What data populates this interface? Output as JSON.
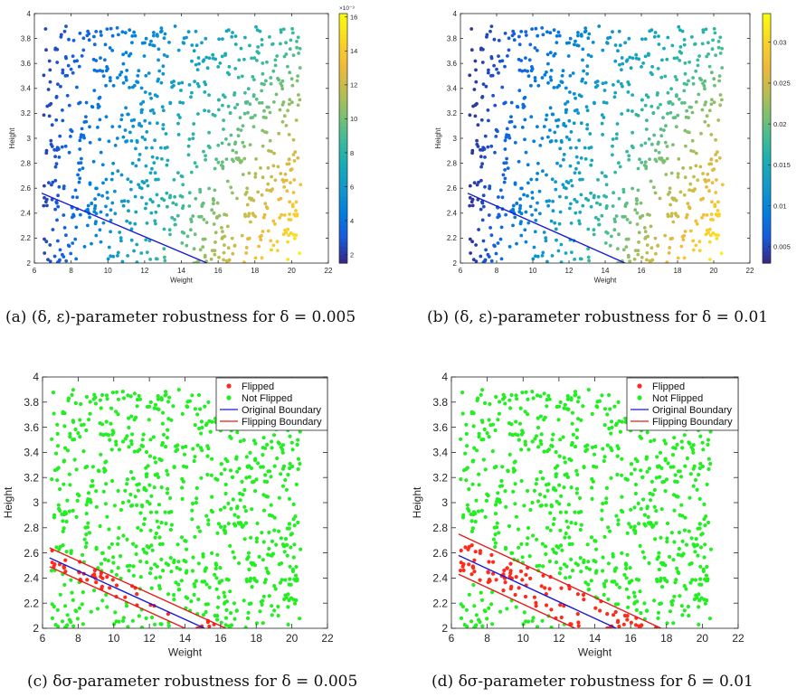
{
  "colors": {
    "flipped": "#ff2a1a",
    "not_flipped": "#22ee22",
    "original_boundary": "#1a1ad8",
    "flipping_boundary": "#e81a1a",
    "colormap": "parula"
  },
  "figure": {
    "captions": [
      {
        "label": "(a)",
        "text": "(δ, ε)-parameter robustness for δ = 0.005"
      },
      {
        "label": "(b)",
        "text": "(δ, ε)-parameter robustness for δ = 0.01"
      },
      {
        "label": "(c)",
        "text": "δσ-parameter robustness for δ = 0.005"
      },
      {
        "label": "(d)",
        "text": "δσ-parameter robustness for δ = 0.01"
      }
    ]
  },
  "chart_data": [
    {
      "id": "a",
      "type": "scatter",
      "color_by": "robustness",
      "xlabel": "Weight",
      "ylabel": "Height",
      "xlim": [
        6,
        22
      ],
      "ylim": [
        2,
        4
      ],
      "xticks": [
        "6",
        "8",
        "10",
        "12",
        "14",
        "16",
        "18",
        "20",
        "22"
      ],
      "yticks": [
        "2",
        "2.2",
        "2.4",
        "2.6",
        "2.8",
        "3",
        "3.2",
        "3.4",
        "3.6",
        "3.8",
        "4"
      ],
      "colorbar": {
        "min": 0.0015,
        "max": 0.0162,
        "ticks": [
          "2",
          "4",
          "6",
          "8",
          "10",
          "12",
          "14",
          "16"
        ],
        "exponent": "×10⁻³"
      },
      "boundary": {
        "x": [
          6.4,
          15.4
        ],
        "y": [
          2.56,
          2.0
        ]
      },
      "legend": null
    },
    {
      "id": "b",
      "type": "scatter",
      "color_by": "robustness",
      "xlabel": "Weight",
      "ylabel": "Height",
      "xlim": [
        6,
        22
      ],
      "ylim": [
        2,
        4
      ],
      "xticks": [
        "6",
        "8",
        "10",
        "12",
        "14",
        "16",
        "18",
        "20",
        "22"
      ],
      "yticks": [
        "2",
        "2.2",
        "2.4",
        "2.6",
        "2.8",
        "3",
        "3.2",
        "3.4",
        "3.6",
        "3.8",
        "4"
      ],
      "colorbar": {
        "min": 0.003,
        "max": 0.0335,
        "ticks": [
          "0.005",
          "0.01",
          "0.015",
          "0.02",
          "0.025",
          "0.03"
        ],
        "exponent": ""
      },
      "boundary": {
        "x": [
          6.4,
          15.1
        ],
        "y": [
          2.56,
          2.0
        ]
      },
      "legend": null
    },
    {
      "id": "c",
      "type": "scatter",
      "xlabel": "Weight",
      "ylabel": "Height",
      "xlim": [
        6,
        22
      ],
      "ylim": [
        2,
        4
      ],
      "xticks": [
        "6",
        "8",
        "10",
        "12",
        "14",
        "16",
        "18",
        "20",
        "22"
      ],
      "yticks": [
        "2",
        "2.2",
        "2.4",
        "2.6",
        "2.8",
        "3",
        "3.2",
        "3.4",
        "3.6",
        "3.8",
        "4"
      ],
      "boundary": {
        "x": [
          6.4,
          15.1
        ],
        "y": [
          2.56,
          2.0
        ]
      },
      "flip_upper": {
        "x": [
          6.4,
          16.3
        ],
        "y": [
          2.64,
          2.0
        ]
      },
      "flip_lower": {
        "x": [
          6.4,
          14.0
        ],
        "y": [
          2.49,
          2.0
        ]
      },
      "legend": {
        "placement": "top-right",
        "entries": [
          "Flipped",
          "Not Flipped",
          "Original Boundary",
          "Flipping Boundary"
        ]
      }
    },
    {
      "id": "d",
      "type": "scatter",
      "xlabel": "Weight",
      "ylabel": "Height",
      "xlim": [
        6,
        22
      ],
      "ylim": [
        2,
        4
      ],
      "xticks": [
        "6",
        "8",
        "10",
        "12",
        "14",
        "16",
        "18",
        "20",
        "22"
      ],
      "yticks": [
        "2",
        "2.2",
        "2.4",
        "2.6",
        "2.8",
        "3",
        "3.2",
        "3.4",
        "3.6",
        "3.8",
        "4"
      ],
      "boundary": {
        "x": [
          6.4,
          15.2
        ],
        "y": [
          2.58,
          2.0
        ]
      },
      "flip_upper": {
        "x": [
          6.4,
          17.7
        ],
        "y": [
          2.75,
          2.0
        ]
      },
      "flip_lower": {
        "x": [
          6.4,
          12.9
        ],
        "y": [
          2.43,
          2.0
        ]
      },
      "legend": {
        "placement": "top-right",
        "entries": [
          "Flipped",
          "Not Flipped",
          "Original Boundary",
          "Flipping Boundary"
        ]
      }
    }
  ]
}
